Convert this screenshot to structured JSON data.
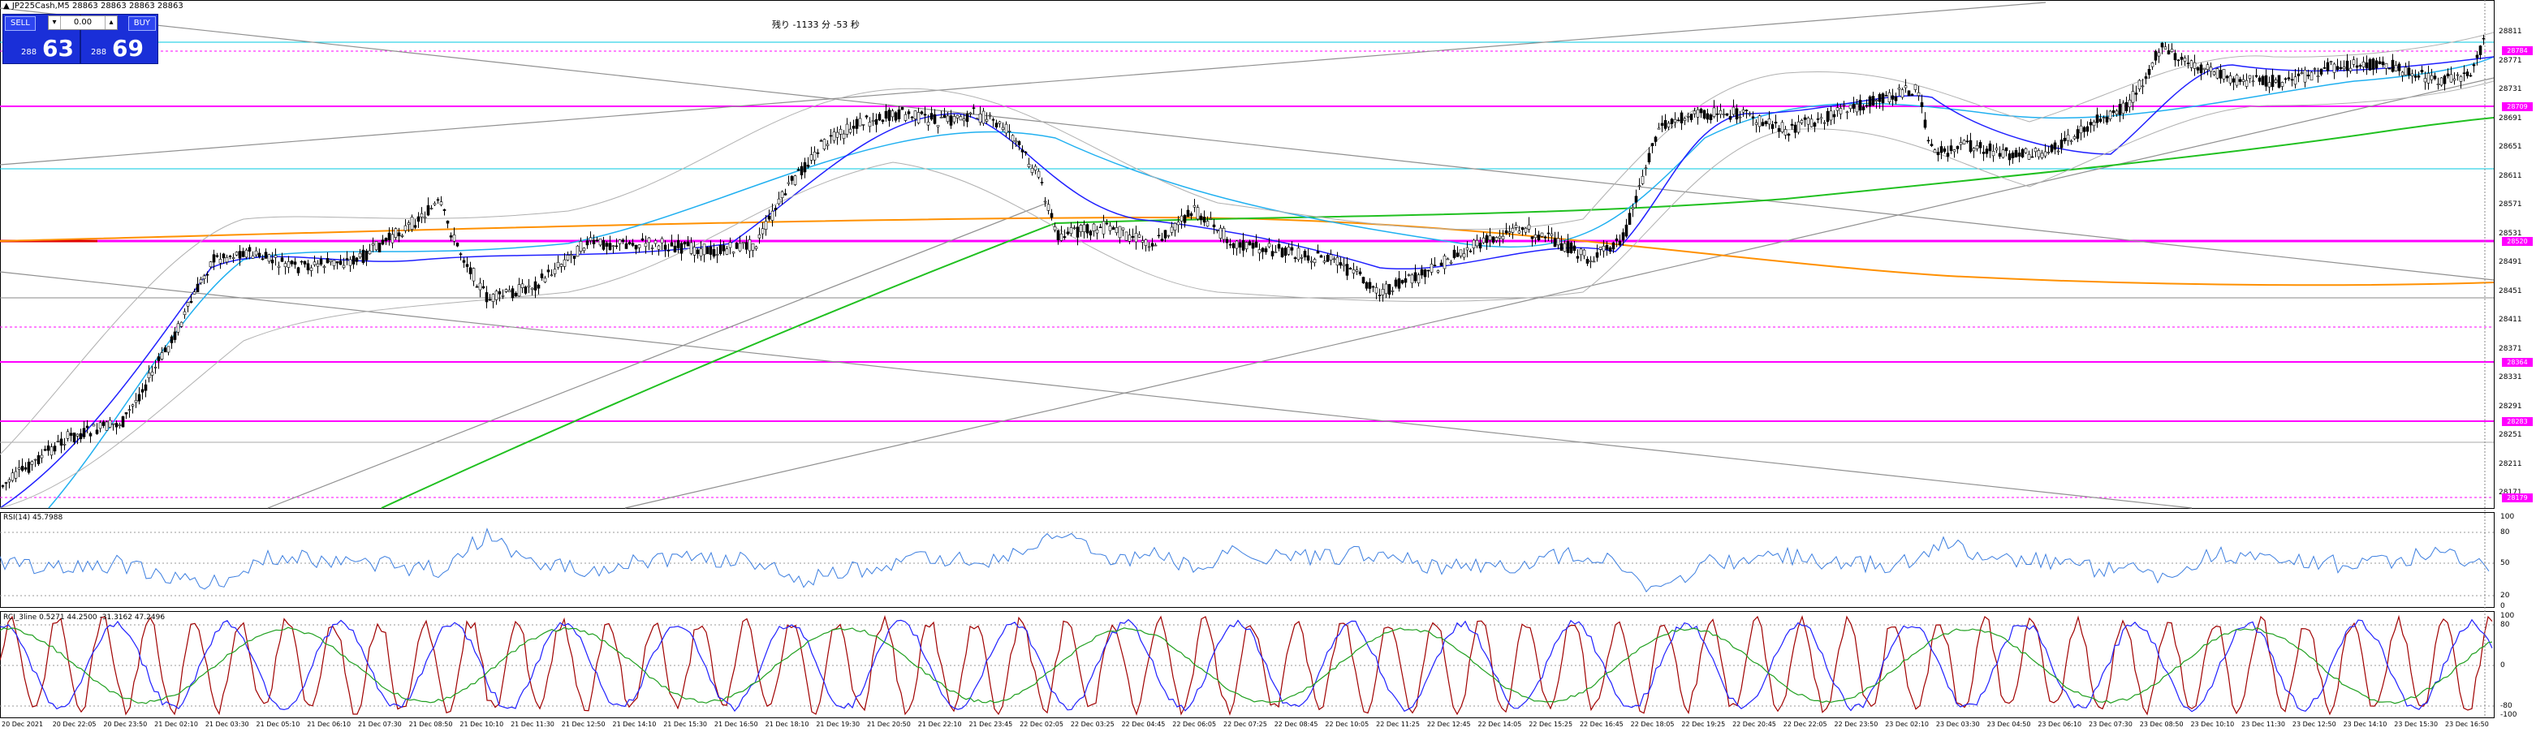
{
  "window": {
    "info": "JP225Cash,M5  28863 28863 28863 28863",
    "timer": "残り -1133 分 -53 秒"
  },
  "trade_panel": {
    "sell_label": "SELL",
    "buy_label": "BUY",
    "lot_value": "0.00",
    "lot_down": "▾",
    "lot_up": "▴",
    "sell_price_small": "288",
    "sell_price_big": "63",
    "buy_price_small": "288",
    "buy_price_big": "69"
  },
  "price_axis": [
    "28811",
    "28771",
    "28731",
    "28691",
    "28651",
    "28611",
    "28571",
    "28531",
    "28491",
    "28451",
    "28411",
    "28371",
    "28331",
    "28291",
    "28251",
    "28211",
    "28171"
  ],
  "price_tags": [
    "28784",
    "28709",
    "28520",
    "28364",
    "28283",
    "28179"
  ],
  "rsi": {
    "label": "RSI(14) 45.7988",
    "levels": [
      "100",
      "80",
      "50",
      "20",
      "0"
    ]
  },
  "stoch": {
    "label": "RCI_3line 0.5271 44.2500 -31.3162 47.2496",
    "levels": [
      "100",
      "80",
      "0",
      "-80",
      "-100"
    ]
  },
  "time_axis": [
    "20 Dec 2021",
    "20 Dec 22:05",
    "20 Dec 23:50",
    "21 Dec 02:10",
    "21 Dec 03:30",
    "21 Dec 05:10",
    "21 Dec 06:10",
    "21 Dec 07:30",
    "21 Dec 08:50",
    "21 Dec 10:10",
    "21 Dec 11:30",
    "21 Dec 12:50",
    "21 Dec 14:10",
    "21 Dec 15:30",
    "21 Dec 16:50",
    "21 Dec 18:10",
    "21 Dec 19:30",
    "21 Dec 20:50",
    "21 Dec 22:10",
    "21 Dec 23:45",
    "22 Dec 02:05",
    "22 Dec 03:25",
    "22 Dec 04:45",
    "22 Dec 06:05",
    "22 Dec 07:25",
    "22 Dec 08:45",
    "22 Dec 10:05",
    "22 Dec 11:25",
    "22 Dec 12:45",
    "22 Dec 14:05",
    "22 Dec 15:25",
    "22 Dec 16:45",
    "22 Dec 18:05",
    "22 Dec 19:25",
    "22 Dec 20:45",
    "22 Dec 22:05",
    "22 Dec 23:50",
    "23 Dec 02:10",
    "23 Dec 03:30",
    "23 Dec 04:50",
    "23 Dec 06:10",
    "23 Dec 07:30",
    "23 Dec 08:50",
    "23 Dec 10:10",
    "23 Dec 11:30",
    "23 Dec 12:50",
    "23 Dec 14:10",
    "23 Dec 15:30",
    "23 Dec 16:50"
  ],
  "colors": {
    "bull": "#000000",
    "bear": "#000000",
    "ma_short": "#2020ff",
    "ma_mid": "#20b0f0",
    "ma_long": "#20c020",
    "ma_orange": "#ff9000",
    "bollinger": "#b0b0b0",
    "hline_magenta": "#ff00ff",
    "hline_cyan": "#00c8e0",
    "rsi_line": "#3d7fe0",
    "stoch_red": "#a00000",
    "stoch_blue": "#2020ff",
    "stoch_green": "#20a020"
  },
  "icons": {
    "chart_symbol": "triangle-icon"
  }
}
